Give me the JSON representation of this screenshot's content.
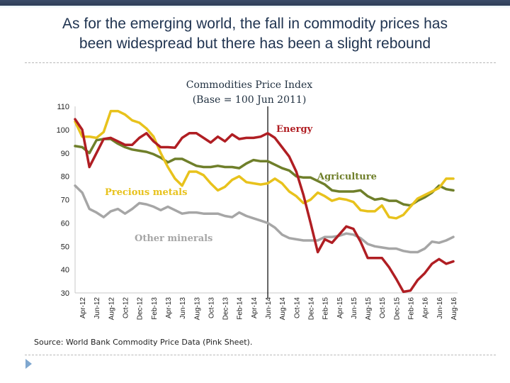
{
  "slide": {
    "title_line1": "As for the emerging world, the fall in commodity prices has",
    "title_line2": "been widespread but there has been a slight rebound",
    "source": "Source: World Bank Commodity Price Data (Pink Sheet)."
  },
  "colors": {
    "topbar": "#34455f",
    "title": "#1f3350",
    "bullet": "#7fa7cf"
  },
  "chart_data": {
    "type": "line",
    "title": "Commodities Price Index",
    "subtitle": "(Base = 100  Jun 2011)",
    "xlabel": "",
    "ylabel": "",
    "ylim": [
      30,
      110
    ],
    "yticks": [
      110,
      100,
      90,
      80,
      70,
      60,
      50,
      40,
      30
    ],
    "x_start": "Mar-12",
    "x_end": "Aug-16",
    "frequency": "monthly",
    "xtick_labels": [
      "Apr-12",
      "Jun-12",
      "Aug-12",
      "Oct-12",
      "Dec-12",
      "Feb-13",
      "Apr-13",
      "Jun-13",
      "Aug-13",
      "Oct-13",
      "Dec-13",
      "Feb-14",
      "Apr-14",
      "Jun-14",
      "Aug-14",
      "Oct-14",
      "Dec-14",
      "Feb-15",
      "Apr-15",
      "Jun-15",
      "Aug-15",
      "Oct-15",
      "Dec-15",
      "Feb-16",
      "Apr-16",
      "Jun-16",
      "Aug-16"
    ],
    "vertical_marker": "Jun-14",
    "grid": false,
    "legend": "inline-labels",
    "series": [
      {
        "name": "Energy",
        "color": "#b01e23",
        "label_position": "right of Jun-14 marker",
        "values": [
          104.5,
          100,
          84,
          90,
          96,
          96.5,
          95,
          93.5,
          93.5,
          96.5,
          98.5,
          95,
          92.5,
          92.5,
          92.3,
          96.5,
          98.5,
          98.5,
          96.5,
          94.5,
          97,
          95,
          98,
          96,
          96.5,
          96.5,
          97,
          98.5,
          96.5,
          92.5,
          88.5,
          82,
          72,
          60,
          47.5,
          53,
          51.5,
          55,
          58.5,
          57.5,
          52,
          45,
          45,
          45,
          41,
          36,
          30.5,
          31,
          35.5,
          38.5,
          42.5,
          44.5,
          42.5,
          43.5
        ]
      },
      {
        "name": "Agriculture",
        "color": "#6f7f2a",
        "label_position": "above line near Feb-15",
        "values": [
          93,
          92.5,
          90,
          95.5,
          96,
          96,
          94,
          92.5,
          91.5,
          91,
          90.5,
          89.5,
          88,
          86,
          87.5,
          87.5,
          86,
          84.5,
          84,
          84,
          84.5,
          84,
          84,
          83.5,
          85.5,
          87,
          86.5,
          86.5,
          85,
          83.5,
          82.5,
          80,
          79.5,
          79.5,
          78,
          76.5,
          74,
          73.5,
          73.5,
          73.5,
          74,
          71.5,
          70,
          70.5,
          69.5,
          69.5,
          68,
          67.5,
          69.5,
          71,
          73,
          76,
          74.5,
          74
        ]
      },
      {
        "name": "Precious metals",
        "color": "#e8c21c",
        "label_position": "below line near Aug-12",
        "values": [
          103.5,
          97,
          97,
          96.5,
          99,
          108,
          108,
          106.5,
          104,
          103,
          100.5,
          97,
          90,
          84,
          79,
          76,
          82,
          82,
          80.5,
          77,
          74,
          75.5,
          78.5,
          80,
          77.5,
          77,
          76.5,
          77,
          79,
          77,
          73.5,
          71.5,
          68.5,
          70,
          73,
          71.5,
          69.5,
          70.5,
          70,
          69,
          65.5,
          65,
          65,
          67.5,
          62.5,
          62,
          63.5,
          67,
          70.5,
          72,
          73.5,
          75,
          79,
          79
        ]
      },
      {
        "name": "Other minerals",
        "color": "#a6a6a6",
        "label_position": "below line near Oct-13",
        "values": [
          76,
          73,
          66,
          64.5,
          62.5,
          65,
          66,
          64,
          66,
          68.5,
          68,
          67,
          65.5,
          67,
          65.5,
          64,
          64.5,
          64.5,
          64,
          64,
          64,
          63,
          62.5,
          64.5,
          63,
          62,
          61,
          60,
          58,
          55,
          53.5,
          53,
          52.5,
          52.5,
          52.5,
          54,
          54,
          54.5,
          55.5,
          55,
          53.5,
          51,
          50,
          49.5,
          49,
          49,
          48,
          47.5,
          47.5,
          49,
          52,
          51.5,
          52.5,
          54
        ]
      }
    ]
  }
}
